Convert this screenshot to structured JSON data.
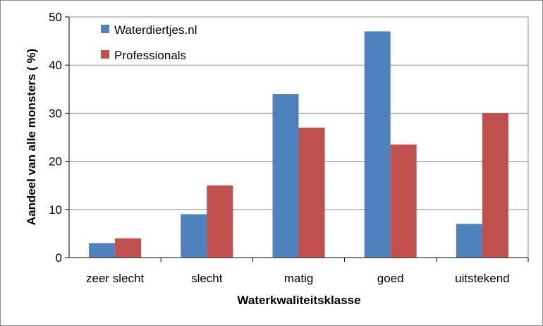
{
  "chart_data": {
    "type": "bar",
    "categories": [
      "zeer slecht",
      "slecht",
      "matig",
      "goed",
      "uitstekend"
    ],
    "series": [
      {
        "name": "Waterdiertjes.nl",
        "values": [
          3,
          9,
          34,
          47,
          7
        ],
        "color": "#4f81bd"
      },
      {
        "name": "Professionals",
        "values": [
          4,
          15,
          27,
          23.5,
          30
        ],
        "color": "#c0504d"
      }
    ],
    "xlabel": "Waterkwaliteitsklasse",
    "ylabel": "Aandeel van alle monsters ( %)",
    "ylim": [
      0,
      50
    ],
    "yticks": [
      0,
      10,
      20,
      30,
      40,
      50
    ],
    "grid": true,
    "legend": "top-left"
  }
}
